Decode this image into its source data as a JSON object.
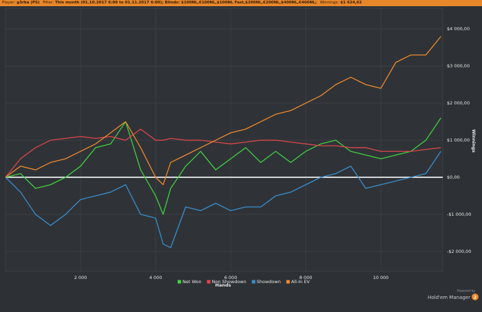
{
  "header": {
    "player_label": "Player:",
    "player": "g3rka (PS)",
    "filter_label": "Filter:",
    "filter": "This month (01.10.2017 6:00 to 01.11.2017 6:00); Blinds: $100NL,€100NL,$100NL Fast,$200NL,€200NL,$400NL,€400NL;",
    "winnings_label": "Winnings:",
    "winnings": "$1 624,62"
  },
  "footer": {
    "powered_by": "Powered by",
    "brand": "Hold'em Manager",
    "badge": "2"
  },
  "chart_data": {
    "type": "line",
    "x_label": "Hands",
    "y_label": "Winnings",
    "x": [
      0,
      400,
      800,
      1200,
      1600,
      2000,
      2400,
      2800,
      3200,
      3600,
      4000,
      4200,
      4400,
      4800,
      5200,
      5600,
      6000,
      6400,
      6800,
      7200,
      7600,
      8000,
      8400,
      8800,
      9200,
      9600,
      10000,
      10400,
      10800,
      11200,
      11600
    ],
    "series": [
      {
        "name": "Net Won",
        "color": "#3fd43f",
        "values": [
          0,
          100,
          -300,
          -200,
          0,
          300,
          800,
          900,
          1500,
          200,
          -500,
          -1000,
          -300,
          300,
          700,
          200,
          500,
          800,
          400,
          700,
          400,
          700,
          900,
          1000,
          700,
          600,
          500,
          600,
          700,
          1000,
          1600
        ]
      },
      {
        "name": "Non Showdown",
        "color": "#e0474c",
        "values": [
          0,
          500,
          800,
          1000,
          1050,
          1100,
          1050,
          1100,
          1000,
          1300,
          1000,
          1000,
          1050,
          1000,
          1000,
          950,
          900,
          950,
          1000,
          1000,
          950,
          900,
          850,
          850,
          800,
          800,
          700,
          700,
          700,
          750,
          800
        ]
      },
      {
        "name": "Showdown",
        "color": "#3a8fd0",
        "values": [
          0,
          -400,
          -1000,
          -1300,
          -1000,
          -600,
          -500,
          -400,
          -200,
          -1000,
          -1100,
          -1800,
          -1900,
          -800,
          -900,
          -700,
          -900,
          -800,
          -800,
          -500,
          -400,
          -200,
          0,
          100,
          300,
          -300,
          -200,
          -100,
          0,
          100,
          700
        ]
      },
      {
        "name": "All-In EV",
        "color": "#f08a2c",
        "values": [
          0,
          300,
          200,
          400,
          500,
          700,
          900,
          1200,
          1500,
          800,
          0,
          -200,
          400,
          600,
          800,
          1000,
          1200,
          1300,
          1500,
          1700,
          1800,
          2000,
          2200,
          2500,
          2700,
          2500,
          2400,
          3100,
          3300,
          3300,
          3800
        ]
      }
    ],
    "xlim": [
      0,
      11650
    ],
    "ylim": [
      -2540,
      4560
    ],
    "xticks": [
      {
        "value": 2000,
        "label": "2 000"
      },
      {
        "value": 4000,
        "label": "4 000"
      },
      {
        "value": 6000,
        "label": "6 000"
      },
      {
        "value": 8000,
        "label": "8 000"
      },
      {
        "value": 10000,
        "label": "10 000"
      }
    ],
    "yticks": [
      {
        "value": -2000,
        "label": "-$2 000,00"
      },
      {
        "value": -1000,
        "label": "-$1 000,00"
      },
      {
        "value": 0,
        "label": "$0,00"
      },
      {
        "value": 1000,
        "label": "$1 000,00"
      },
      {
        "value": 2000,
        "label": "$2 000,00"
      },
      {
        "value": 3000,
        "label": "$3 000,00"
      },
      {
        "value": 4000,
        "label": "$4 000,00"
      }
    ],
    "grid": true,
    "legend": "bottom"
  }
}
